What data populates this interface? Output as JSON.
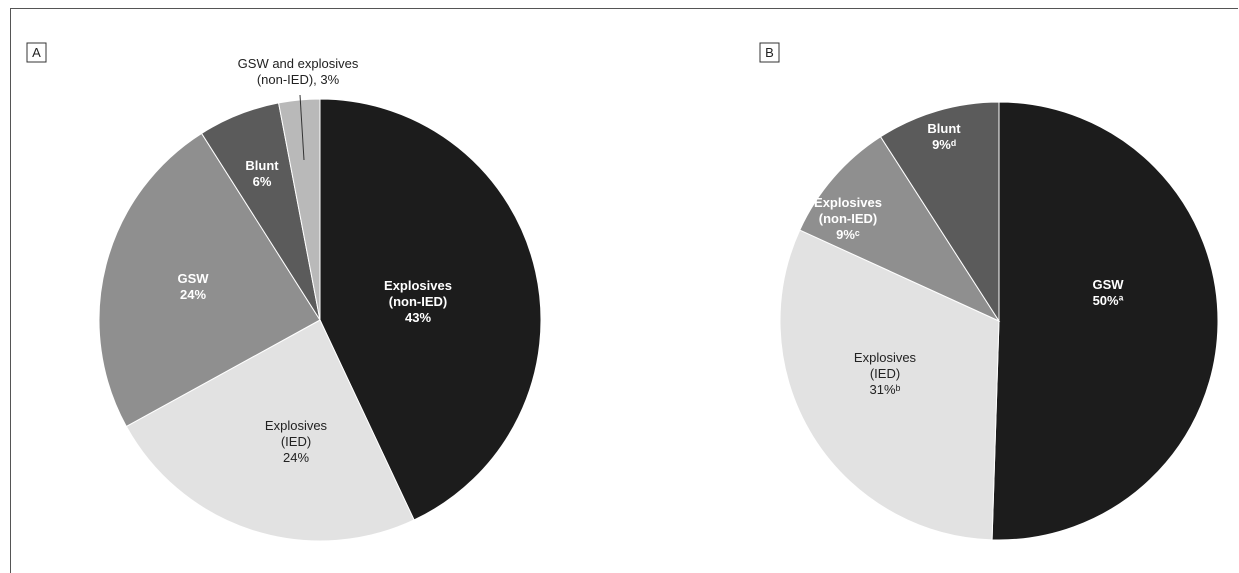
{
  "chart_data": [
    {
      "type": "pie",
      "panel": "A",
      "title": "",
      "slices": [
        {
          "name": "Explosives (non-IED)",
          "lines": [
            "Explosives",
            "(non-IED)",
            "43%"
          ],
          "value": 43,
          "color": "#1c1c1c",
          "text_color": "#ffffff",
          "bold": true
        },
        {
          "name": "Explosives (IED)",
          "lines": [
            "Explosives",
            "(IED)",
            "24%"
          ],
          "value": 24,
          "color": "#e2e2e2",
          "text_color": "#222222",
          "bold": false
        },
        {
          "name": "GSW",
          "lines": [
            "GSW",
            "24%"
          ],
          "value": 24,
          "color": "#8f8f8f",
          "text_color": "#ffffff",
          "bold": true
        },
        {
          "name": "Blunt",
          "lines": [
            "Blunt",
            "6%"
          ],
          "value": 6,
          "color": "#5b5b5b",
          "text_color": "#ffffff",
          "bold": true
        },
        {
          "name": "GSW and explosives (non-IED)",
          "lines": [
            "GSW and explosives",
            "(non-IED), 3%"
          ],
          "value": 3,
          "color": "#b9b9b9",
          "text_color": "#222222",
          "bold": false,
          "callout": true
        }
      ]
    },
    {
      "type": "pie",
      "panel": "B",
      "title": "",
      "slices": [
        {
          "name": "GSW",
          "lines": [
            "GSW",
            "50%ª"
          ],
          "value": 50,
          "color": "#1c1c1c",
          "text_color": "#ffffff",
          "bold": true
        },
        {
          "name": "Explosives (IED)",
          "lines": [
            "Explosives",
            "(IED)",
            "31%ᵇ"
          ],
          "value": 31,
          "color": "#e2e2e2",
          "text_color": "#222222",
          "bold": false
        },
        {
          "name": "Explosives (non-IED)",
          "lines": [
            "Explosives",
            "(non-IED)",
            "9%ᶜ"
          ],
          "value": 9,
          "color": "#8f8f8f",
          "text_color": "#ffffff",
          "bold": true
        },
        {
          "name": "Blunt",
          "lines": [
            "Blunt",
            "9%ᵈ"
          ],
          "value": 9,
          "color": "#5b5b5b",
          "text_color": "#ffffff",
          "bold": true
        }
      ]
    }
  ]
}
